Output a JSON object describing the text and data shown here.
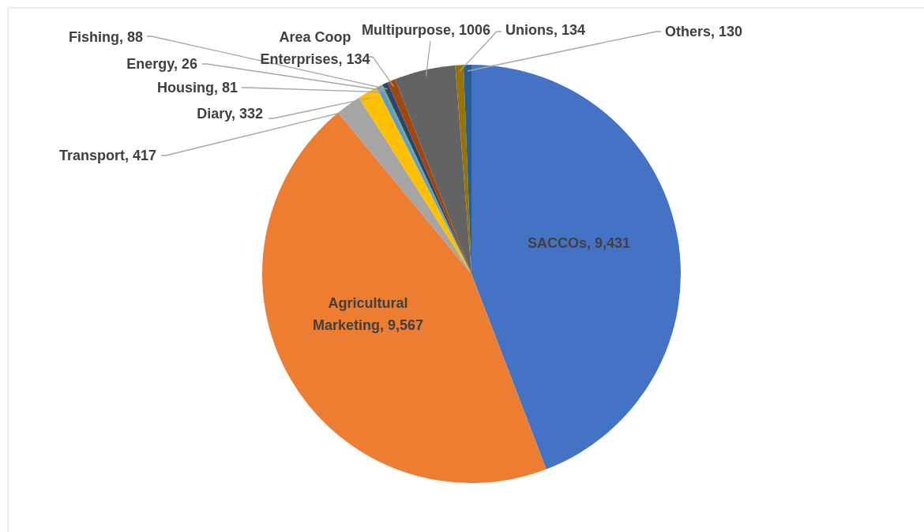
{
  "chart_data": {
    "type": "pie",
    "categories": [
      "SACCOs",
      "Agricultural Marketing",
      "Transport",
      "Diary",
      "Housing",
      "Energy",
      "Fishing",
      "Area Coop Enterprises",
      "Multipurpose",
      "Unions",
      "Others"
    ],
    "values": [
      9431,
      9567,
      417,
      332,
      81,
      26,
      88,
      134,
      1006,
      134,
      130
    ],
    "value_labels": [
      "9,431",
      "9,567",
      "417",
      "332",
      "81",
      "26",
      "88",
      "134",
      "1006",
      "134",
      "130"
    ],
    "colors": [
      "#4472c4",
      "#ed7d31",
      "#a5a5a5",
      "#ffc000",
      "#5b9bd5",
      "#70ad47",
      "#264478",
      "#9e480e",
      "#636363",
      "#997300",
      "#255e91"
    ]
  }
}
